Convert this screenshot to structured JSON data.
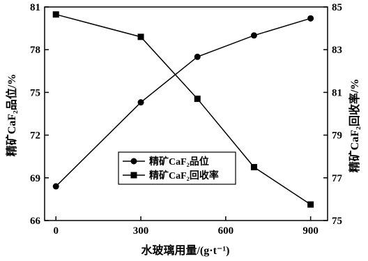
{
  "chart_data": {
    "type": "line",
    "xlabel": "水玻璃用量/(g·t⁻¹)",
    "ylabel_left": "精矿CaF₂品位/%",
    "ylabel_right": "精矿CaF₂回收率/%",
    "x": [
      0,
      300,
      500,
      700,
      900
    ],
    "xlim": [
      -40,
      960
    ],
    "xticks": [
      0,
      300,
      600,
      900
    ],
    "ylim_left": [
      66,
      81
    ],
    "yticks_left": [
      66,
      69,
      72,
      75,
      78,
      81
    ],
    "ylim_right": [
      75,
      85
    ],
    "yticks_right": [
      75,
      77,
      79,
      81,
      83,
      85
    ],
    "grid": false,
    "legend_position": "center-bottom",
    "series": [
      {
        "name": "精矿CaF₂品位",
        "axis": "left",
        "marker": "circle",
        "values": [
          68.4,
          74.3,
          77.5,
          79.0,
          80.2
        ]
      },
      {
        "name": "精矿CaF₂回收率",
        "axis": "right",
        "marker": "square",
        "values": [
          84.65,
          83.6,
          80.7,
          77.5,
          75.75
        ]
      }
    ]
  }
}
